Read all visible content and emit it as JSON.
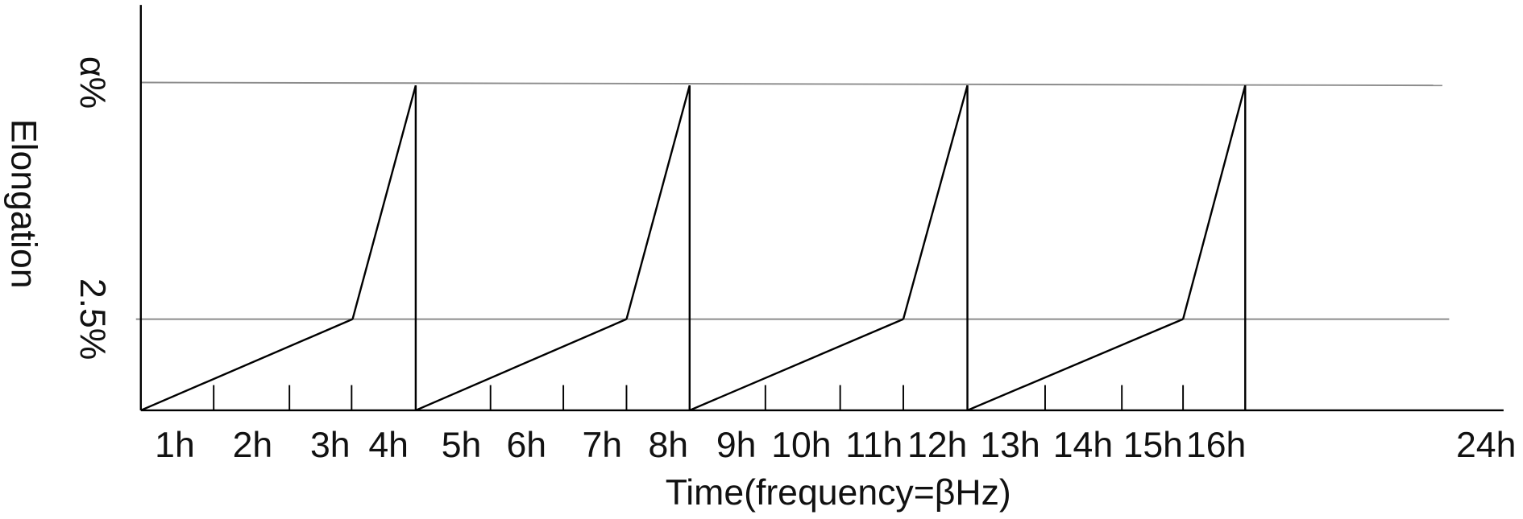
{
  "chart_data": {
    "type": "line",
    "xlabel": "Time(frequency=βHz)",
    "ylabel": "Elongation",
    "x_tick_labels": [
      "1h",
      "2h",
      "3h",
      "4h",
      "5h",
      "6h",
      "7h",
      "8h",
      "9h",
      "10h",
      "11h",
      "12h",
      "13h",
      "14h",
      "15h",
      "16h",
      "24h"
    ],
    "y_tick_labels": [
      "2.5%",
      "α%"
    ],
    "y_levels": [
      "0",
      "2.5%",
      "α%"
    ],
    "reference_lines": [
      "2.5%",
      "α%"
    ],
    "grid": false,
    "colors": {
      "series": "#000000",
      "reference": "#8c8c8c",
      "axis": "#000000"
    },
    "series": [
      {
        "points": [
          [
            0,
            "0"
          ],
          [
            3,
            "2.5%"
          ],
          [
            4,
            "α%"
          ],
          [
            4,
            "0"
          ],
          [
            7,
            "2.5%"
          ],
          [
            8,
            "α%"
          ],
          [
            8,
            "0"
          ],
          [
            11,
            "2.5%"
          ],
          [
            12,
            "α%"
          ],
          [
            12,
            "0"
          ],
          [
            15,
            "2.5%"
          ],
          [
            16,
            "α%"
          ],
          [
            16,
            "0"
          ]
        ]
      }
    ]
  }
}
